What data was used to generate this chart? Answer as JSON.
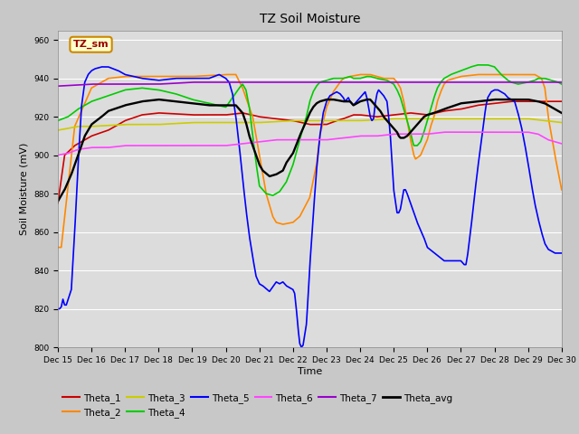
{
  "title": "TZ Soil Moisture",
  "xlabel": "Time",
  "ylabel": "Soil Moisture (mV)",
  "ylim": [
    800,
    965
  ],
  "yticks": [
    800,
    820,
    840,
    860,
    880,
    900,
    920,
    940,
    960
  ],
  "xtick_labels": [
    "Dec 15",
    "Dec 16",
    "Dec 17",
    "Dec 18",
    "Dec 19",
    "Dec 20",
    "Dec 21",
    "Dec 22",
    "Dec 23",
    "Dec 24",
    "Dec 25",
    "Dec 26",
    "Dec 27",
    "Dec 28",
    "Dec 29",
    "Dec 30"
  ],
  "legend_label": "TZ_sm",
  "fig_bg": "#c8c8c8",
  "plot_bg": "#dcdcdc",
  "series_colors": {
    "Theta_1": "#cc0000",
    "Theta_2": "#ff8800",
    "Theta_3": "#cccc00",
    "Theta_4": "#00cc00",
    "Theta_5": "#0000ff",
    "Theta_6": "#ff44ff",
    "Theta_7": "#9900cc",
    "Theta_avg": "#000000"
  },
  "linewidth": 1.2
}
